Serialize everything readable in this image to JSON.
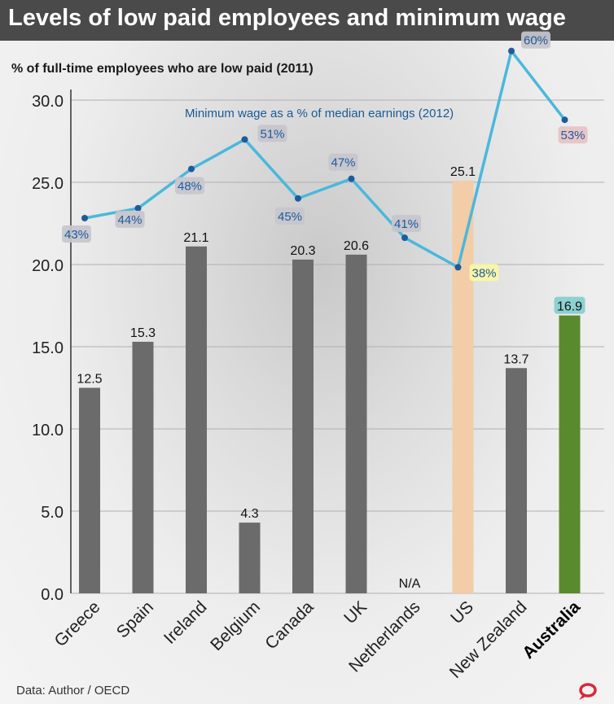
{
  "header": {
    "title": "Levels of low paid employees and minimum wage",
    "subtitle": "% of full-time employees who are low paid (2011)",
    "source": "Data: Author / OECD"
  },
  "colors": {
    "header_bg": "#4a4a4a",
    "bar_default": "#6b6b6b",
    "bar_us": "#f2cda8",
    "bar_australia": "#5a8a2e",
    "line": "#4ab8dc",
    "point": "#1f5a9c",
    "label_bg_default": "#c5c5cc",
    "label_bg_us": "#f8f7a5",
    "label_bg_australia": "#e6c2c4",
    "bar_label_bg_australia": "#8dd1d1",
    "logo": "#d8283a"
  },
  "chart_data": {
    "type": "bar",
    "title": "Levels of low paid employees and minimum wage",
    "ylabel": "% of full-time employees who are low paid (2011)",
    "ylim": [
      0,
      30
    ],
    "yticks": [
      "0.0",
      "5.0",
      "10.0",
      "15.0",
      "20.0",
      "25.0",
      "30.0"
    ],
    "grid": true,
    "categories": [
      "Greece",
      "Spain",
      "Ireland",
      "Belgium",
      "Canada",
      "UK",
      "Netherlands",
      "US",
      "New Zealand",
      "Australia"
    ],
    "series": [
      {
        "values": [
          12.5,
          15.3,
          21.1,
          4.3,
          20.3,
          20.6,
          null,
          25.1,
          13.7,
          16.9
        ],
        "labels": [
          "12.5",
          "15.3",
          "21.1",
          "4.3",
          "20.3",
          "20.6",
          "N/A",
          "25.1",
          "13.7",
          "16.9"
        ]
      },
      {
        "name": "Minimum wage as a % of median earnings (2012)",
        "type": "line",
        "points": [
          {
            "category": "Greece",
            "value": 43,
            "label": "43%"
          },
          {
            "category": "Spain",
            "value": 44,
            "label": "44%"
          },
          {
            "category": "Ireland",
            "value": 48,
            "label": "48%"
          },
          {
            "category": "Belgium",
            "value": 51,
            "label": "51%"
          },
          {
            "category": "Canada",
            "value": 45,
            "label": "45%"
          },
          {
            "category": "UK",
            "value": 47,
            "label": "47%"
          },
          {
            "category": "Netherlands",
            "value": 41,
            "label": "41%"
          },
          {
            "category": "US",
            "value": 38,
            "label": "38%"
          },
          {
            "category": "New Zealand",
            "value": 60,
            "label": "60%"
          },
          {
            "category": "Australia",
            "value": 53,
            "label": "53%"
          }
        ]
      }
    ]
  }
}
